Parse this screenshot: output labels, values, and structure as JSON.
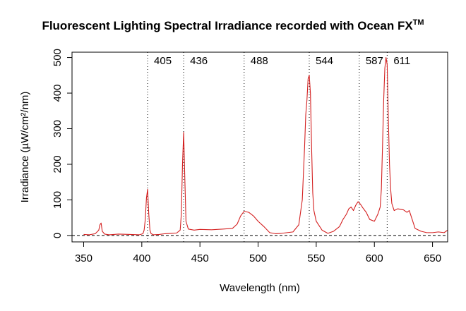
{
  "chart_data": {
    "type": "line",
    "title": "Fluorescent Lighting Spectral Irradiance recorded with Ocean FX",
    "title_superscript": "TM",
    "xlabel": "Wavelength (nm)",
    "ylabel": "Irradiance (µW/cm²/nm)",
    "xlim": [
      340,
      663
    ],
    "ylim": [
      -18,
      515
    ],
    "x_ticks": [
      350,
      400,
      450,
      500,
      550,
      600,
      650
    ],
    "y_ticks": [
      0,
      100,
      200,
      300,
      400,
      500
    ],
    "grid": false,
    "zero_reference_line": true,
    "line_color": "#d42020",
    "peak_markers": [
      405,
      436,
      488,
      544,
      587,
      611
    ],
    "series": [
      {
        "x": [
          350,
          355,
          360,
          363,
          364,
          365,
          366,
          368,
          372,
          380,
          390,
          398,
          401,
          402,
          403,
          404,
          405,
          406,
          407,
          408,
          410,
          415,
          420,
          425,
          430,
          433,
          434,
          435,
          436,
          437,
          438,
          440,
          445,
          450,
          460,
          470,
          478,
          482,
          485,
          488,
          492,
          496,
          500,
          505,
          510,
          515,
          520,
          530,
          535,
          538,
          540,
          541,
          542,
          543,
          544,
          545,
          546,
          547,
          548,
          550,
          555,
          560,
          565,
          570,
          573,
          576,
          578,
          580,
          582,
          584,
          586,
          588,
          590,
          593,
          596,
          600,
          603,
          605,
          606,
          607,
          608,
          609,
          610,
          611,
          612,
          613,
          614,
          615,
          617,
          620,
          625,
          628,
          630,
          633,
          635,
          640,
          645,
          650,
          655,
          660,
          663
        ],
        "y": [
          3,
          2,
          5,
          15,
          30,
          35,
          12,
          4,
          2,
          4,
          3,
          2,
          5,
          15,
          45,
          105,
          130,
          60,
          15,
          5,
          2,
          3,
          5,
          6,
          7,
          15,
          60,
          200,
          290,
          160,
          40,
          18,
          15,
          17,
          16,
          18,
          20,
          32,
          55,
          68,
          65,
          55,
          40,
          25,
          8,
          5,
          6,
          10,
          30,
          100,
          250,
          340,
          380,
          440,
          450,
          400,
          250,
          120,
          70,
          40,
          15,
          6,
          12,
          25,
          45,
          60,
          75,
          80,
          70,
          85,
          95,
          88,
          78,
          65,
          45,
          40,
          60,
          80,
          130,
          250,
          380,
          470,
          500,
          480,
          330,
          200,
          130,
          90,
          70,
          75,
          72,
          65,
          70,
          40,
          20,
          12,
          8,
          8,
          10,
          8,
          15
        ]
      }
    ]
  }
}
